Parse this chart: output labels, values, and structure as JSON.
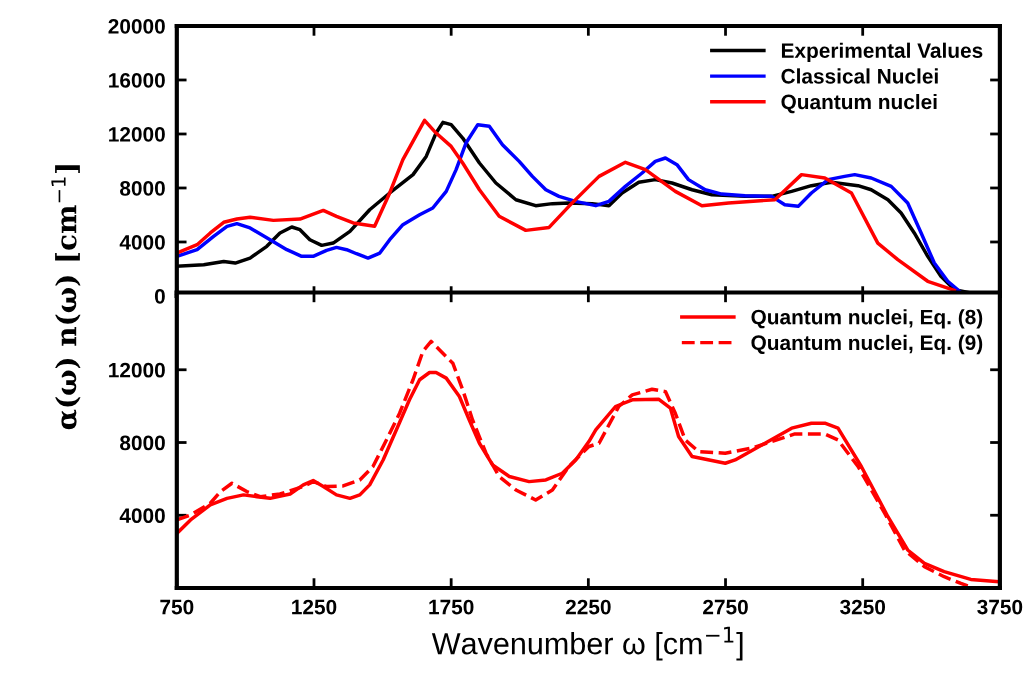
{
  "chart_data": [
    {
      "type": "line",
      "ylabel": "α(ω) n(ω) [cm$^{−1}$]",
      "xlim": [
        750,
        3750
      ],
      "xticks": [
        750,
        1250,
        1750,
        2250,
        2750,
        3250,
        3750
      ],
      "ylim": [
        0,
        20000
      ],
      "yticks": [
        0,
        4000,
        8000,
        12000,
        16000,
        20000
      ],
      "tick_labels": "y",
      "legend": "top right",
      "line_style": "solid",
      "series": [
        {
          "name": "Experimental Values",
          "color": "#000000",
          "x": [
            750,
            848,
            921,
            963,
            1017,
            1078,
            1126,
            1169,
            1199,
            1235,
            1278,
            1320,
            1381,
            1453,
            1526,
            1611,
            1659,
            1695,
            1720,
            1750,
            1792,
            1853,
            1913,
            1986,
            2058,
            2119,
            2179,
            2264,
            2325,
            2373,
            2434,
            2494,
            2555,
            2628,
            2700,
            2821,
            2918,
            2991,
            3063,
            3136,
            3233,
            3281,
            3342,
            3390,
            3438,
            3487,
            3535,
            3584,
            3644,
            3741
          ],
          "values": [
            2200,
            2320,
            2560,
            2440,
            2810,
            3680,
            4660,
            5110,
            4910,
            4170,
            3750,
            3920,
            4790,
            6390,
            7630,
            8990,
            10340,
            12070,
            12860,
            12690,
            11700,
            9850,
            8370,
            7130,
            6690,
            6840,
            6890,
            6840,
            6690,
            7630,
            8420,
            8620,
            8370,
            7870,
            7500,
            7380,
            7380,
            7750,
            8170,
            8420,
            8170,
            7870,
            7130,
            6150,
            4670,
            2940,
            1460,
            470,
            220,
            100
          ]
        },
        {
          "name": "Classical Nuclei",
          "color": "#0000ff",
          "x": [
            750,
            824,
            884,
            933,
            969,
            1017,
            1090,
            1151,
            1205,
            1247,
            1296,
            1332,
            1369,
            1405,
            1447,
            1490,
            1526,
            1574,
            1635,
            1683,
            1732,
            1768,
            1804,
            1847,
            1889,
            1937,
            1998,
            2046,
            2095,
            2143,
            2203,
            2277,
            2325,
            2385,
            2446,
            2494,
            2531,
            2573,
            2615,
            2676,
            2736,
            2821,
            2918,
            2966,
            3015,
            3063,
            3124,
            3184,
            3221,
            3281,
            3354,
            3414,
            3463,
            3511,
            3560,
            3608
          ],
          "values": [
            2940,
            3430,
            4420,
            5160,
            5360,
            5040,
            4170,
            3430,
            2940,
            2940,
            3380,
            3600,
            3430,
            3130,
            2810,
            3180,
            4170,
            5280,
            6020,
            6520,
            7750,
            9360,
            11330,
            12690,
            12570,
            11210,
            9970,
            8860,
            7870,
            7380,
            7010,
            6690,
            7010,
            8120,
            9110,
            9970,
            10220,
            9730,
            8620,
            7870,
            7550,
            7430,
            7380,
            6760,
            6640,
            7630,
            8620,
            8860,
            8990,
            8740,
            8120,
            6890,
            4670,
            2440,
            1090,
            270
          ]
        },
        {
          "name": "Quantum nuclei",
          "color": "#ff0000",
          "x": [
            750,
            824,
            872,
            921,
            969,
            1017,
            1102,
            1199,
            1284,
            1332,
            1393,
            1471,
            1526,
            1574,
            1653,
            1695,
            1750,
            1792,
            1853,
            1925,
            2022,
            2107,
            2179,
            2252,
            2289,
            2385,
            2458,
            2567,
            2664,
            2761,
            2930,
            3027,
            3112,
            3209,
            3305,
            3378,
            3487,
            3584
          ],
          "values": [
            3180,
            3800,
            4670,
            5460,
            5700,
            5830,
            5600,
            5700,
            6340,
            5900,
            5410,
            5160,
            7630,
            10100,
            13010,
            12070,
            11080,
            9850,
            7870,
            5900,
            4860,
            5080,
            6640,
            8120,
            8860,
            9900,
            9360,
            7750,
            6690,
            6890,
            7130,
            8990,
            8740,
            7630,
            3920,
            2690,
            1090,
            420
          ]
        }
      ]
    },
    {
      "type": "line",
      "xlabel": "Wavenumber ω [cm$^{−1}$]",
      "xlim": [
        750,
        3750
      ],
      "xticks": [
        750,
        1250,
        1750,
        2250,
        2750,
        3250,
        3750
      ],
      "ylim": [
        0,
        16250
      ],
      "yticks": [
        4000,
        8000,
        12000
      ],
      "legend": "top right",
      "series": [
        {
          "name": "Quantum nuclei, Eq. (8)",
          "color": "#ff0000",
          "line_style": "solid",
          "x": [
            750,
            800,
            872,
            933,
            993,
            1042,
            1090,
            1163,
            1211,
            1247,
            1284,
            1332,
            1381,
            1417,
            1453,
            1502,
            1550,
            1598,
            1635,
            1671,
            1695,
            1732,
            1780,
            1816,
            1853,
            1901,
            1962,
            2034,
            2095,
            2155,
            2204,
            2252,
            2277,
            2349,
            2410,
            2506,
            2549,
            2579,
            2628,
            2749,
            2785,
            2894,
            2991,
            3063,
            3112,
            3160,
            3245,
            3342,
            3414,
            3475,
            3547,
            3644,
            3741
          ],
          "values": [
            3000,
            3740,
            4570,
            4930,
            5120,
            5020,
            4930,
            5170,
            5670,
            5910,
            5580,
            5120,
            4930,
            5120,
            5670,
            7040,
            8690,
            10350,
            11450,
            11850,
            11850,
            11540,
            10530,
            9240,
            7960,
            6770,
            6130,
            5850,
            5940,
            6310,
            7040,
            8050,
            8690,
            9980,
            10350,
            10380,
            9890,
            8330,
            7230,
            6860,
            7040,
            7960,
            8790,
            9060,
            9060,
            8790,
            6680,
            3920,
            2090,
            1350,
            900,
            470,
            350
          ]
        },
        {
          "name": "Quantum nuclei, Eq. (9)",
          "color": "#ff0000",
          "line_style": "dashed",
          "x": [
            750,
            800,
            872,
            909,
            951,
            1005,
            1054,
            1126,
            1211,
            1247,
            1296,
            1356,
            1417,
            1465,
            1514,
            1562,
            1611,
            1647,
            1677,
            1707,
            1756,
            1792,
            1828,
            1877,
            1925,
            1986,
            2058,
            2119,
            2179,
            2252,
            2289,
            2361,
            2410,
            2482,
            2531,
            2567,
            2603,
            2652,
            2749,
            2845,
            2918,
            3003,
            3112,
            3160,
            3233,
            3330,
            3402,
            3475,
            3547,
            3608,
            3656
          ],
          "values": [
            3740,
            4020,
            4660,
            5300,
            5760,
            5300,
            5020,
            5170,
            5580,
            5850,
            5580,
            5610,
            5940,
            6680,
            8140,
            9610,
            11450,
            13010,
            13560,
            13100,
            12360,
            10900,
            9240,
            7410,
            6130,
            5390,
            4840,
            5390,
            6680,
            7780,
            7960,
            9980,
            10620,
            10930,
            10800,
            9610,
            8140,
            7500,
            7410,
            7690,
            8050,
            8470,
            8470,
            8140,
            6680,
            4110,
            2090,
            1170,
            620,
            250,
            0
          ]
        }
      ]
    }
  ]
}
